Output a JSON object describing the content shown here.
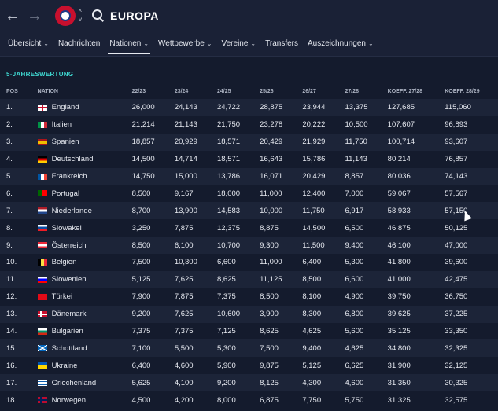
{
  "header": {
    "title": "EUROPA",
    "back_icon": "←",
    "forward_icon": "→",
    "search_icon": "search-icon"
  },
  "menu": [
    {
      "label": "Übersicht",
      "chevron": true,
      "active": false
    },
    {
      "label": "Nachrichten",
      "chevron": false,
      "active": false
    },
    {
      "label": "Nationen",
      "chevron": true,
      "active": true
    },
    {
      "label": "Wettbewerbe",
      "chevron": true,
      "active": false
    },
    {
      "label": "Vereine",
      "chevron": true,
      "active": false
    },
    {
      "label": "Transfers",
      "chevron": false,
      "active": false
    },
    {
      "label": "Auszeichnungen",
      "chevron": true,
      "active": false
    }
  ],
  "section": {
    "label": "5-JAHRESWERTUNG"
  },
  "columns": [
    "POS",
    "NATION",
    "22/23",
    "23/24",
    "24/25",
    "25/26",
    "26/27",
    "27/28",
    "KOEFF. 27/28",
    "KOEFF. 28/29"
  ],
  "rows": [
    {
      "pos": "1.",
      "nation": "England",
      "flag": "eng",
      "v": [
        "26,000",
        "24,143",
        "24,722",
        "28,875",
        "23,944",
        "13,375",
        "127,685",
        "115,060"
      ]
    },
    {
      "pos": "2.",
      "nation": "Italien",
      "flag": "ita",
      "v": [
        "21,214",
        "21,143",
        "21,750",
        "23,278",
        "20,222",
        "10,500",
        "107,607",
        "96,893"
      ]
    },
    {
      "pos": "3.",
      "nation": "Spanien",
      "flag": "esp",
      "v": [
        "18,857",
        "20,929",
        "18,571",
        "20,429",
        "21,929",
        "11,750",
        "100,714",
        "93,607"
      ]
    },
    {
      "pos": "4.",
      "nation": "Deutschland",
      "flag": "ger",
      "v": [
        "14,500",
        "14,714",
        "18,571",
        "16,643",
        "15,786",
        "11,143",
        "80,214",
        "76,857"
      ]
    },
    {
      "pos": "5.",
      "nation": "Frankreich",
      "flag": "fra",
      "v": [
        "14,750",
        "15,000",
        "13,786",
        "16,071",
        "20,429",
        "8,857",
        "80,036",
        "74,143"
      ]
    },
    {
      "pos": "6.",
      "nation": "Portugal",
      "flag": "por",
      "v": [
        "8,500",
        "9,167",
        "18,000",
        "11,000",
        "12,400",
        "7,000",
        "59,067",
        "57,567"
      ]
    },
    {
      "pos": "7.",
      "nation": "Niederlande",
      "flag": "ned",
      "v": [
        "8,700",
        "13,900",
        "14,583",
        "10,000",
        "11,750",
        "6,917",
        "58,933",
        "57,150"
      ]
    },
    {
      "pos": "8.",
      "nation": "Slowakei",
      "flag": "svk",
      "v": [
        "3,250",
        "7,875",
        "12,375",
        "8,875",
        "14,500",
        "6,500",
        "46,875",
        "50,125"
      ]
    },
    {
      "pos": "9.",
      "nation": "Österreich",
      "flag": "aut",
      "v": [
        "8,500",
        "6,100",
        "10,700",
        "9,300",
        "11,500",
        "9,400",
        "46,100",
        "47,000"
      ]
    },
    {
      "pos": "10.",
      "nation": "Belgien",
      "flag": "bel",
      "v": [
        "7,500",
        "10,300",
        "6,600",
        "11,000",
        "6,400",
        "5,300",
        "41,800",
        "39,600"
      ]
    },
    {
      "pos": "11.",
      "nation": "Slowenien",
      "flag": "svn",
      "v": [
        "5,125",
        "7,625",
        "8,625",
        "11,125",
        "8,500",
        "6,600",
        "41,000",
        "42,475"
      ]
    },
    {
      "pos": "12.",
      "nation": "Türkei",
      "flag": "tur",
      "v": [
        "7,900",
        "7,875",
        "7,375",
        "8,500",
        "8,100",
        "4,900",
        "39,750",
        "36,750"
      ]
    },
    {
      "pos": "13.",
      "nation": "Dänemark",
      "flag": "den",
      "v": [
        "9,200",
        "7,625",
        "10,600",
        "3,900",
        "8,300",
        "6,800",
        "39,625",
        "37,225"
      ]
    },
    {
      "pos": "14.",
      "nation": "Bulgarien",
      "flag": "bul",
      "v": [
        "7,375",
        "7,375",
        "7,125",
        "8,625",
        "4,625",
        "5,600",
        "35,125",
        "33,350"
      ]
    },
    {
      "pos": "15.",
      "nation": "Schottland",
      "flag": "sco",
      "v": [
        "7,100",
        "5,500",
        "5,300",
        "7,500",
        "9,400",
        "4,625",
        "34,800",
        "32,325"
      ]
    },
    {
      "pos": "16.",
      "nation": "Ukraine",
      "flag": "ukr",
      "v": [
        "6,400",
        "4,600",
        "5,900",
        "9,875",
        "5,125",
        "6,625",
        "31,900",
        "32,125"
      ]
    },
    {
      "pos": "17.",
      "nation": "Griechenland",
      "flag": "gre",
      "v": [
        "5,625",
        "4,100",
        "9,200",
        "8,125",
        "4,300",
        "4,600",
        "31,350",
        "30,325"
      ]
    },
    {
      "pos": "18.",
      "nation": "Norwegen",
      "flag": "nor",
      "v": [
        "4,500",
        "4,200",
        "8,000",
        "6,875",
        "7,750",
        "5,750",
        "31,325",
        "32,575"
      ]
    }
  ]
}
